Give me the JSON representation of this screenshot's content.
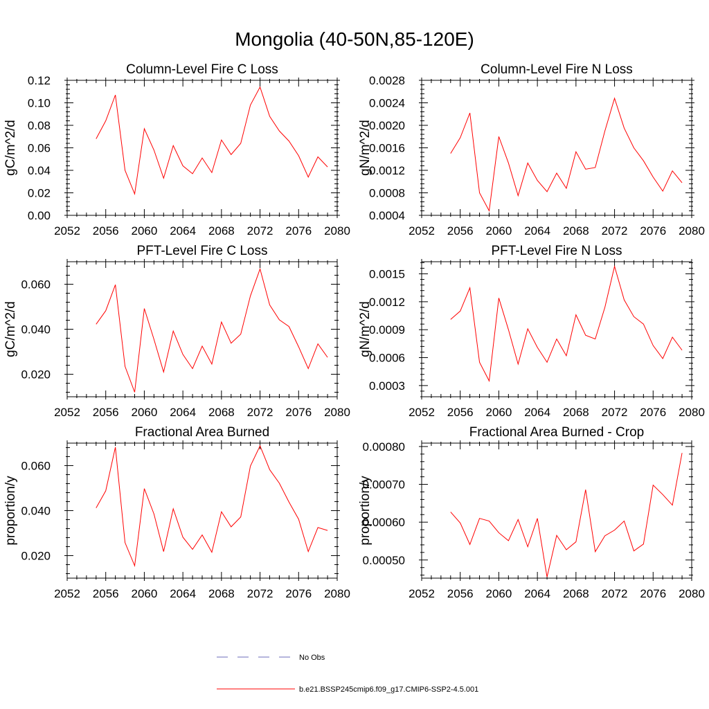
{
  "figure": {
    "title": "Mongolia (40-50N,85-120E)"
  },
  "legend": {
    "obs_label": "No Obs",
    "obs_color": "#6b6bb8",
    "model_label": "b.e21.BSSP245cmip6.f09_g17.CMIP6-SSP2-4.5.001",
    "model_color": "#ff0000"
  },
  "chart_data": [
    {
      "type": "line",
      "title": "Column-Level Fire C Loss",
      "ylabel": "gC/m^2/d",
      "xlim": [
        2052,
        2080
      ],
      "ylim": [
        0.0,
        0.12
      ],
      "xticks": [
        "2052",
        "2056",
        "2060",
        "2064",
        "2068",
        "2072",
        "2076",
        "2080"
      ],
      "yticks": [
        "0.00",
        "0.02",
        "0.04",
        "0.06",
        "0.08",
        "0.10",
        "0.12"
      ],
      "grid": false,
      "x": [
        2055,
        2056,
        2057,
        2058,
        2059,
        2060,
        2061,
        2062,
        2063,
        2064,
        2065,
        2066,
        2067,
        2068,
        2069,
        2070,
        2071,
        2072,
        2073,
        2074,
        2075,
        2076,
        2077,
        2078,
        2079
      ],
      "series": [
        {
          "name": "b.e21.BSSP245cmip6.f09_g17.CMIP6-SSP2-4.5.001",
          "color": "#ff0000",
          "values": [
            0.068,
            0.084,
            0.107,
            0.04,
            0.019,
            0.077,
            0.058,
            0.033,
            0.062,
            0.044,
            0.037,
            0.051,
            0.038,
            0.067,
            0.054,
            0.064,
            0.098,
            0.114,
            0.088,
            0.075,
            0.066,
            0.053,
            0.034,
            0.052,
            0.043
          ]
        }
      ]
    },
    {
      "type": "line",
      "title": "Column-Level Fire N Loss",
      "ylabel": "gN/m^2/d",
      "xlim": [
        2052,
        2080
      ],
      "ylim": [
        0.0004,
        0.0028
      ],
      "xticks": [
        "2052",
        "2056",
        "2060",
        "2064",
        "2068",
        "2072",
        "2076",
        "2080"
      ],
      "yticks": [
        "0.0004",
        "0.0008",
        "0.0012",
        "0.0016",
        "0.0020",
        "0.0024",
        "0.0028"
      ],
      "grid": false,
      "x": [
        2055,
        2056,
        2057,
        2058,
        2059,
        2060,
        2061,
        2062,
        2063,
        2064,
        2065,
        2066,
        2067,
        2068,
        2069,
        2070,
        2071,
        2072,
        2073,
        2074,
        2075,
        2076,
        2077,
        2078,
        2079
      ],
      "series": [
        {
          "name": "b.e21.BSSP245cmip6.f09_g17.CMIP6-SSP2-4.5.001",
          "color": "#ff0000",
          "values": [
            0.0015,
            0.00178,
            0.00222,
            0.0008,
            0.00048,
            0.0018,
            0.00133,
            0.00075,
            0.00133,
            0.00102,
            0.00082,
            0.00115,
            0.00088,
            0.00153,
            0.00122,
            0.00125,
            0.0019,
            0.00248,
            0.00195,
            0.0016,
            0.00137,
            0.00108,
            0.00083,
            0.00119,
            0.00098
          ]
        }
      ]
    },
    {
      "type": "line",
      "title": "PFT-Level Fire C Loss",
      "ylabel": "gC/m^2/d",
      "xlim": [
        2052,
        2080
      ],
      "ylim": [
        0.01,
        0.07
      ],
      "xticks": [
        "2052",
        "2056",
        "2060",
        "2064",
        "2068",
        "2072",
        "2076",
        "2080"
      ],
      "yticks": [
        "0.020",
        "0.040",
        "0.060"
      ],
      "grid": false,
      "x": [
        2055,
        2056,
        2057,
        2058,
        2059,
        2060,
        2061,
        2062,
        2063,
        2064,
        2065,
        2066,
        2067,
        2068,
        2069,
        2070,
        2071,
        2072,
        2073,
        2074,
        2075,
        2076,
        2077,
        2078,
        2079
      ],
      "series": [
        {
          "name": "b.e21.BSSP245cmip6.f09_g17.CMIP6-SSP2-4.5.001",
          "color": "#ff0000",
          "values": [
            0.0422,
            0.0482,
            0.0598,
            0.0235,
            0.012,
            0.0492,
            0.0355,
            0.021,
            0.0392,
            0.0288,
            0.0225,
            0.0325,
            0.0245,
            0.0432,
            0.0338,
            0.0378,
            0.0548,
            0.0668,
            0.0508,
            0.0442,
            0.0412,
            0.0322,
            0.0225,
            0.0335,
            0.0275
          ]
        }
      ]
    },
    {
      "type": "line",
      "title": "PFT-Level Fire N Loss",
      "ylabel": "gN/m^2/d",
      "xlim": [
        2052,
        2080
      ],
      "ylim": [
        0.00018,
        0.00163
      ],
      "xticks": [
        "2052",
        "2056",
        "2060",
        "2064",
        "2068",
        "2072",
        "2076",
        "2080"
      ],
      "yticks": [
        "0.0003",
        "0.0006",
        "0.0009",
        "0.0012",
        "0.0015"
      ],
      "grid": false,
      "x": [
        2055,
        2056,
        2057,
        2058,
        2059,
        2060,
        2061,
        2062,
        2063,
        2064,
        2065,
        2066,
        2067,
        2068,
        2069,
        2070,
        2071,
        2072,
        2073,
        2074,
        2075,
        2076,
        2077,
        2078,
        2079
      ],
      "series": [
        {
          "name": "b.e21.BSSP245cmip6.f09_g17.CMIP6-SSP2-4.5.001",
          "color": "#ff0000",
          "values": [
            0.00101,
            0.0011,
            0.00135,
            0.00055,
            0.00035,
            0.00124,
            0.0009,
            0.00053,
            0.00091,
            0.00071,
            0.00055,
            0.0008,
            0.00062,
            0.00106,
            0.00084,
            0.0008,
            0.00114,
            0.00158,
            0.00122,
            0.00104,
            0.00096,
            0.00073,
            0.00059,
            0.00082,
            0.00068
          ]
        }
      ]
    },
    {
      "type": "line",
      "title": "Fractional Area Burned",
      "ylabel": "proportion/y",
      "xlim": [
        2052,
        2080
      ],
      "ylim": [
        0.01,
        0.07
      ],
      "xticks": [
        "2052",
        "2056",
        "2060",
        "2064",
        "2068",
        "2072",
        "2076",
        "2080"
      ],
      "yticks": [
        "0.020",
        "0.040",
        "0.060"
      ],
      "grid": false,
      "x": [
        2055,
        2056,
        2057,
        2058,
        2059,
        2060,
        2061,
        2062,
        2063,
        2064,
        2065,
        2066,
        2067,
        2068,
        2069,
        2070,
        2071,
        2072,
        2073,
        2074,
        2075,
        2076,
        2077,
        2078,
        2079
      ],
      "series": [
        {
          "name": "b.e21.BSSP245cmip6.f09_g17.CMIP6-SSP2-4.5.001",
          "color": "#ff0000",
          "values": [
            0.0412,
            0.0488,
            0.0682,
            0.0258,
            0.0155,
            0.0498,
            0.0385,
            0.0218,
            0.0408,
            0.0282,
            0.0228,
            0.0292,
            0.0215,
            0.0395,
            0.0328,
            0.0372,
            0.0598,
            0.0688,
            0.0582,
            0.0522,
            0.0438,
            0.0362,
            0.0218,
            0.0325,
            0.0312
          ]
        }
      ]
    },
    {
      "type": "line",
      "title": "Fractional Area Burned - Crop",
      "ylabel": "proportion/y",
      "xlim": [
        2052,
        2080
      ],
      "ylim": [
        0.000452,
        0.000809
      ],
      "xticks": [
        "2052",
        "2056",
        "2060",
        "2064",
        "2068",
        "2072",
        "2076",
        "2080"
      ],
      "yticks": [
        "0.00050",
        "0.00060",
        "0.00070",
        "0.00080"
      ],
      "grid": false,
      "x": [
        2055,
        2056,
        2057,
        2058,
        2059,
        2060,
        2061,
        2062,
        2063,
        2064,
        2065,
        2066,
        2067,
        2068,
        2069,
        2070,
        2071,
        2072,
        2073,
        2074,
        2075,
        2076,
        2077,
        2078,
        2079
      ],
      "series": [
        {
          "name": "b.e21.BSSP245cmip6.f09_g17.CMIP6-SSP2-4.5.001",
          "color": "#ff0000",
          "values": [
            0.000627,
            0.000598,
            0.000541,
            0.00061,
            0.000603,
            0.000572,
            0.000551,
            0.000607,
            0.000535,
            0.00061,
            0.000455,
            0.000565,
            0.000527,
            0.000548,
            0.000686,
            0.000522,
            0.000564,
            0.000579,
            0.000603,
            0.000524,
            0.000542,
            0.000698,
            0.000673,
            0.000645,
            0.000783
          ]
        }
      ]
    }
  ]
}
